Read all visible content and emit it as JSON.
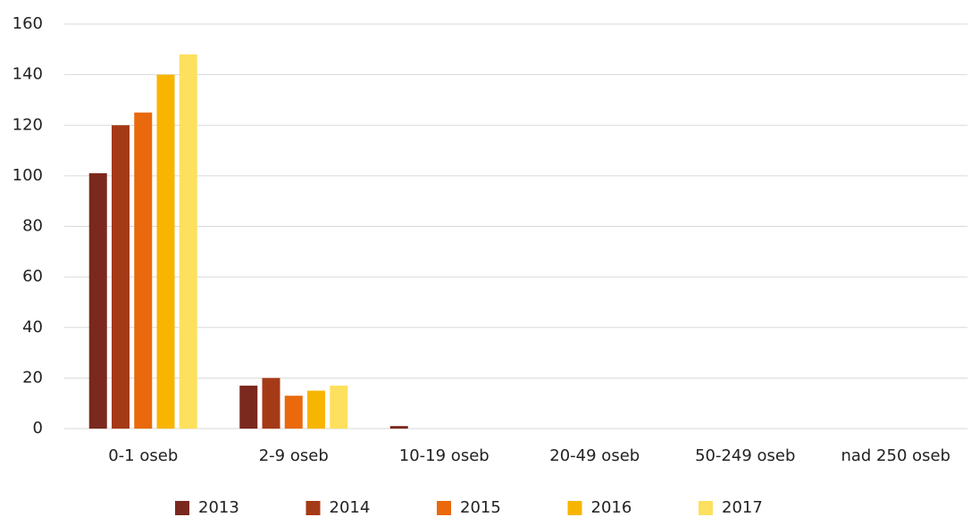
{
  "chart_data": {
    "type": "bar",
    "categories": [
      "0-1 oseb",
      "2-9 oseb",
      "10-19 oseb",
      "20-49 oseb",
      "50-249 oseb",
      "nad 250 oseb"
    ],
    "series": [
      {
        "name": "2013",
        "color": "#7b281e",
        "values": [
          101,
          17,
          1,
          0,
          0,
          0
        ]
      },
      {
        "name": "2014",
        "color": "#a53a16",
        "values": [
          120,
          20,
          0,
          0,
          0,
          0
        ]
      },
      {
        "name": "2015",
        "color": "#e9690c",
        "values": [
          125,
          13,
          0,
          0,
          0,
          0
        ]
      },
      {
        "name": "2016",
        "color": "#f8b500",
        "values": [
          140,
          15,
          0,
          0,
          0,
          0
        ]
      },
      {
        "name": "2017",
        "color": "#fde05e",
        "values": [
          148,
          17,
          0,
          0,
          0,
          0
        ]
      }
    ],
    "ylim": [
      0,
      160
    ],
    "yticks": [
      0,
      20,
      40,
      60,
      80,
      100,
      120,
      140,
      160
    ],
    "grid": true,
    "legend": "bottom"
  }
}
